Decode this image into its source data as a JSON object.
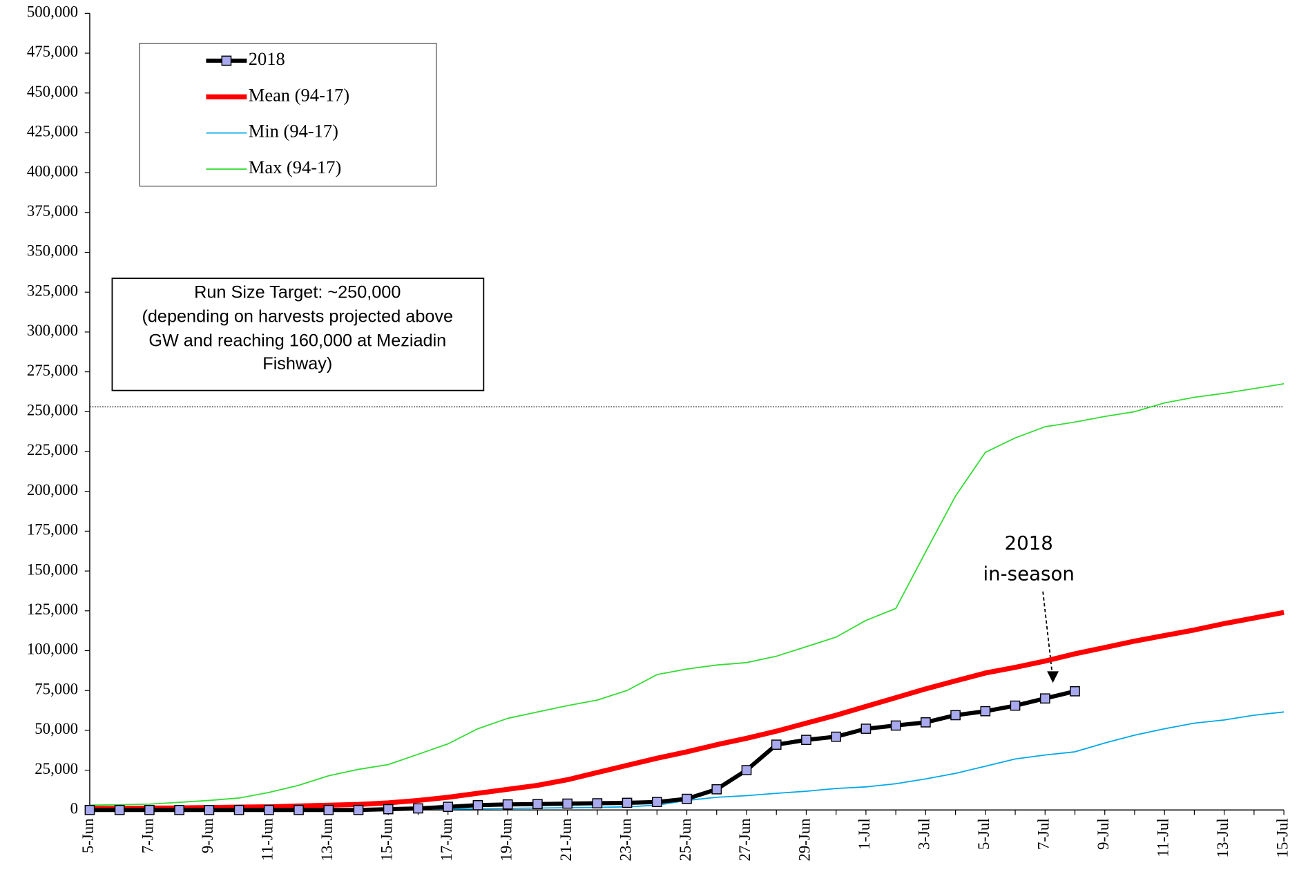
{
  "chart_data": {
    "type": "line",
    "categories": [
      "5-Jun",
      null,
      "7-Jun",
      null,
      "9-Jun",
      null,
      "11-Jun",
      null,
      "13-Jun",
      null,
      "15-Jun",
      null,
      "17-Jun",
      null,
      "19-Jun",
      null,
      "21-Jun",
      null,
      "23-Jun",
      null,
      "25-Jun",
      null,
      "27-Jun",
      null,
      "29-Jun",
      null,
      "1-Jul",
      null,
      "3-Jul",
      null,
      "5-Jul",
      null,
      "7-Jul",
      null,
      "9-Jul",
      null,
      "11-Jul",
      null,
      "13-Jul",
      null,
      "15-Jul"
    ],
    "series": [
      {
        "name": "2018",
        "color": "#000000",
        "marker_color": "#a9a9f0",
        "values": [
          0,
          0,
          0,
          0,
          0,
          0,
          0,
          0,
          0,
          0,
          500,
          1000,
          2000,
          3000,
          3500,
          3700,
          4000,
          4200,
          4500,
          5000,
          7000,
          13000,
          25000,
          41000,
          44000,
          46000,
          51000,
          53000,
          55000,
          59500,
          62000,
          65500,
          70000,
          74500,
          null,
          null,
          null,
          null,
          null,
          null,
          null
        ]
      },
      {
        "name": "Mean (94-17)",
        "color": "#ff0000",
        "values": [
          1000,
          1000,
          1200,
          1300,
          1500,
          1800,
          2000,
          2500,
          3000,
          3500,
          4500,
          6000,
          8000,
          10500,
          13000,
          15500,
          19000,
          23500,
          28000,
          32500,
          36500,
          41000,
          45000,
          49500,
          54500,
          59500,
          65000,
          70500,
          76000,
          81000,
          86000,
          89500,
          93500,
          98000,
          102000,
          106000,
          109500,
          113000,
          117000,
          120500,
          124000
        ]
      },
      {
        "name": "Min (94-17)",
        "color": "#00a8e8",
        "values": [
          0,
          0,
          0,
          0,
          0,
          0,
          0,
          0,
          0,
          0,
          200,
          400,
          600,
          800,
          1000,
          1200,
          1400,
          1600,
          2000,
          3000,
          6000,
          8000,
          9000,
          10500,
          11800,
          13500,
          14500,
          16500,
          19500,
          23000,
          27500,
          32000,
          34500,
          36500,
          42000,
          47000,
          51000,
          54500,
          56500,
          59500,
          61500
        ]
      },
      {
        "name": "Max (94-17)",
        "color": "#33dd33",
        "values": [
          3000,
          3300,
          3700,
          4800,
          6000,
          7500,
          11000,
          15500,
          21500,
          25500,
          28500,
          35000,
          41500,
          51000,
          57500,
          61500,
          65500,
          69000,
          75000,
          85000,
          88500,
          91000,
          92500,
          96500,
          102500,
          108500,
          119000,
          126500,
          162000,
          197000,
          224500,
          233500,
          240500,
          243500,
          247000,
          250000,
          255500,
          259000,
          261500,
          264500,
          267500
        ]
      }
    ],
    "ylim": [
      0,
      500000
    ],
    "yticks": [
      0,
      {
        "value": 25000,
        "label": "25,000"
      },
      {
        "value": 50000,
        "label": "50,000"
      },
      {
        "value": 75000,
        "label": "75,000"
      },
      {
        "value": 100000,
        "label": "100,000"
      },
      {
        "value": 125000,
        "label": "125,000"
      },
      {
        "value": 150000,
        "label": "150,000"
      },
      {
        "value": 175000,
        "label": "175,000"
      },
      {
        "value": 200000,
        "label": "200,000"
      },
      {
        "value": 225000,
        "label": "225,000"
      },
      {
        "value": 250000,
        "label": "250,000"
      },
      {
        "value": 275000,
        "label": "275,000"
      },
      {
        "value": 300000,
        "label": "300,000"
      },
      {
        "value": 325000,
        "label": "325,000"
      },
      {
        "value": 350000,
        "label": "350,000"
      },
      {
        "value": 375000,
        "label": "375,000"
      },
      {
        "value": 400000,
        "label": "400,000"
      },
      {
        "value": 425000,
        "label": "425,000"
      },
      {
        "value": 450000,
        "label": "450,000"
      },
      {
        "value": 475000,
        "label": "475,000"
      },
      {
        "value": 500000,
        "label": "500,000"
      }
    ],
    "target_line": 253000,
    "target_box": [
      "Run Size Target: ~250,000",
      "(depending on harvests projected above",
      "GW and reaching 160,000 at Meziadin",
      "Fishway)"
    ],
    "annotation": [
      "2018",
      "in-season"
    ],
    "legend": "upper left",
    "grid": false
  }
}
